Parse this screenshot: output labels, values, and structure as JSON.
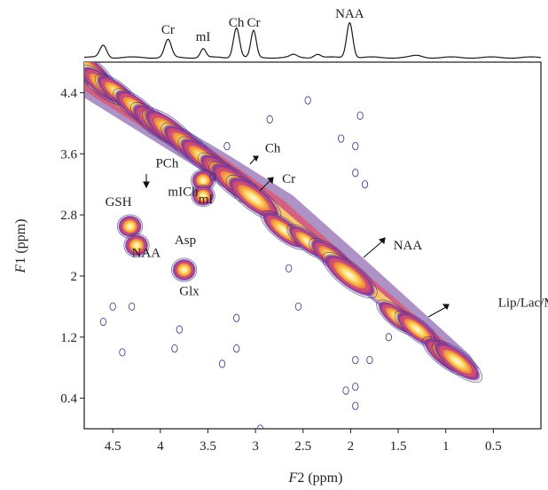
{
  "chart_data": {
    "type": "contour-2d-nmr",
    "xlabel": {
      "italic": "F",
      "rest": "2 (ppm)"
    },
    "ylabel": {
      "italic": "F",
      "rest": "1 (ppm)"
    },
    "x_ticks": [
      "4.5",
      "4",
      "3.5",
      "3",
      "2.5",
      "2",
      "1.5",
      "1",
      "0.5"
    ],
    "y_ticks": [
      "4.4",
      "3.6",
      "2.8",
      "2",
      "1.2",
      "0.4"
    ],
    "xlim": [
      4.8,
      0.0
    ],
    "ylim": [
      0.0,
      4.8
    ],
    "projection_peaks": [
      {
        "label": "Cr",
        "ppm": 3.92
      },
      {
        "label": "mI",
        "ppm": 3.55
      },
      {
        "label": "Ch",
        "ppm": 3.2
      },
      {
        "label": "Cr",
        "ppm": 3.02
      },
      {
        "label": "NAA",
        "ppm": 2.01
      }
    ],
    "annotations": [
      {
        "label": "PCh",
        "f2": 4.05,
        "f1": 3.42
      },
      {
        "label": "mICh",
        "f2": 3.92,
        "f1": 3.05
      },
      {
        "label": "GSH",
        "f2": 4.58,
        "f1": 2.92
      },
      {
        "label": "Asp",
        "f2": 3.85,
        "f1": 2.42
      },
      {
        "label": "NAA",
        "f2": 4.3,
        "f1": 2.25
      },
      {
        "label": "Glx",
        "f2": 3.8,
        "f1": 1.75
      },
      {
        "label": "mI",
        "f2": 3.6,
        "f1": 2.95
      },
      {
        "label": "Ch",
        "f2": 2.9,
        "f1": 3.62
      },
      {
        "label": "Cr",
        "f2": 2.72,
        "f1": 3.22
      },
      {
        "label": "NAA",
        "f2": 1.55,
        "f1": 2.35
      },
      {
        "label": "Lip/Lac/MM",
        "f2": 0.45,
        "f1": 1.6
      }
    ],
    "peaks": [
      {
        "f2": 4.75,
        "f1": 4.7,
        "intensity": 0.9
      },
      {
        "f2": 4.6,
        "f1": 4.5,
        "intensity": 0.8
      },
      {
        "f2": 4.45,
        "f1": 4.4,
        "intensity": 0.7
      },
      {
        "f2": 4.25,
        "f1": 4.2,
        "intensity": 0.75
      },
      {
        "f2": 4.05,
        "f1": 4.0,
        "intensity": 0.85
      },
      {
        "f2": 3.9,
        "f1": 3.9,
        "intensity": 1.0
      },
      {
        "f2": 3.72,
        "f1": 3.72,
        "intensity": 0.9
      },
      {
        "f2": 3.55,
        "f1": 3.55,
        "intensity": 0.85
      },
      {
        "f2": 3.35,
        "f1": 3.35,
        "intensity": 0.8
      },
      {
        "f2": 3.2,
        "f1": 3.2,
        "intensity": 1.0
      },
      {
        "f2": 3.02,
        "f1": 3.02,
        "intensity": 1.0
      },
      {
        "f2": 2.7,
        "f1": 2.6,
        "intensity": 0.75
      },
      {
        "f2": 2.45,
        "f1": 2.45,
        "intensity": 0.6
      },
      {
        "f2": 2.2,
        "f1": 2.25,
        "intensity": 0.7
      },
      {
        "f2": 2.01,
        "f1": 2.01,
        "intensity": 1.0
      },
      {
        "f2": 1.5,
        "f1": 1.45,
        "intensity": 0.65
      },
      {
        "f2": 1.3,
        "f1": 1.3,
        "intensity": 0.7
      },
      {
        "f2": 1.0,
        "f1": 0.95,
        "intensity": 0.75
      },
      {
        "f2": 0.88,
        "f1": 0.88,
        "intensity": 0.85
      },
      {
        "f2": 4.32,
        "f1": 2.65,
        "intensity": 0.45
      },
      {
        "f2": 4.25,
        "f1": 2.4,
        "intensity": 0.45
      },
      {
        "f2": 3.75,
        "f1": 2.08,
        "intensity": 0.45
      },
      {
        "f2": 3.55,
        "f1": 3.25,
        "intensity": 0.4
      },
      {
        "f2": 3.55,
        "f1": 3.05,
        "intensity": 0.35
      }
    ]
  }
}
